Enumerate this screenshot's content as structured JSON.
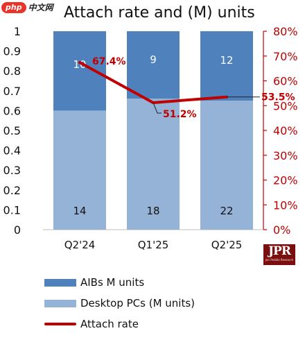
{
  "watermark": {
    "badge": "php",
    "text": "中文网"
  },
  "logo": {
    "main": "JPR",
    "sub": "Jon Peddie Research"
  },
  "colors": {
    "aibs": "#4f81bd",
    "desktop": "#95b3d7",
    "rate": "#c00000"
  },
  "chart_data": {
    "type": "bar",
    "title": "Attach rate and (M) units",
    "categories": [
      "Q2'24",
      "Q1'25",
      "Q2'25"
    ],
    "series": [
      {
        "name": "Desktop PCs (M units)",
        "values": [
          14,
          18,
          22
        ],
        "labels": [
          "14",
          "18",
          "22"
        ],
        "stack_fraction": [
          0.6,
          0.66,
          0.65
        ]
      },
      {
        "name": "AIBs M units",
        "values": [
          10,
          9,
          12
        ],
        "labels": [
          "10",
          "9",
          "12"
        ],
        "stack_fraction": [
          0.4,
          0.34,
          0.35
        ]
      }
    ],
    "line": {
      "name": "Attach rate",
      "values": [
        67.4,
        51.2,
        53.5
      ],
      "labels": [
        "67.4%",
        "51.2%",
        "53.5%"
      ]
    },
    "left_axis": {
      "ylim": [
        0,
        1
      ],
      "ticks": [
        "0",
        "0.1",
        "0.2",
        "0.3",
        "0.4",
        "0.5",
        "0.6",
        "0.7",
        "0.8",
        "0.9",
        "1"
      ]
    },
    "right_axis": {
      "ylim": [
        0,
        80
      ],
      "ticks": [
        "0%",
        "10%",
        "20%",
        "30%",
        "40%",
        "50%",
        "60%",
        "70%",
        "80%"
      ]
    },
    "legend_position": "bottom-left",
    "grid": false
  }
}
